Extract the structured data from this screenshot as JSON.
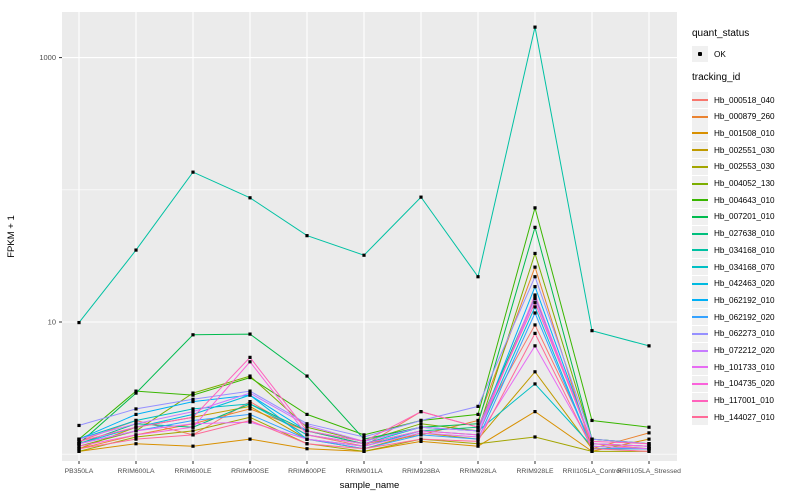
{
  "figure": {
    "y_axis": {
      "label": "FPKM + 1",
      "tick_labels": [
        "1000",
        "10"
      ]
    },
    "x_axis": {
      "label": "sample_name"
    },
    "legend": {
      "quant_status_title": "quant_status",
      "quant_status_items": [
        {
          "label": "OK",
          "marker": "black-point"
        }
      ],
      "tracking_id_title": "tracking_id"
    },
    "colors": {
      "panel_background": "#EBEBEB",
      "gridline": "#FFFFFF",
      "tick_label": "#4D4D4D",
      "point": "#000000",
      "legend_key_background": "#F0F0F0"
    }
  },
  "chart_data": {
    "type": "line",
    "title": "",
    "xlabel": "sample_name",
    "ylabel": "FPKM + 1",
    "y_scale": "log10",
    "y_tick_values": [
      10,
      1000
    ],
    "y_minor_gridlines": [
      1,
      100
    ],
    "ylim": [
      0.88,
      2200
    ],
    "grid": true,
    "legend_position": "right",
    "point_marker": "black-square",
    "categories": [
      "PB350LA",
      "RRIM600LA",
      "RRIM600LE",
      "RRIM600SE",
      "RRIM600PE",
      "RRIM901LA",
      "RRIM928BA",
      "RRIM928LA",
      "RRIM928LE",
      "RRII105LA_Control",
      "RRII105LA_Stressed"
    ],
    "series": [
      {
        "name": "Hb_000518_040",
        "color": "#F8766D",
        "values": [
          1.25,
          1.8,
          1.4,
          2.5,
          1.4,
          1.15,
          2.1,
          1.6,
          9.5,
          1.2,
          1.1
        ]
      },
      {
        "name": "Hb_000879_260",
        "color": "#EA8331",
        "values": [
          1.1,
          1.4,
          1.7,
          2.2,
          1.5,
          1.2,
          1.4,
          1.8,
          26,
          1.1,
          1.45
        ]
      },
      {
        "name": "Hb_001508_010",
        "color": "#D89000",
        "values": [
          1.05,
          1.2,
          1.15,
          1.3,
          1.1,
          1.05,
          1.25,
          1.15,
          2.1,
          1.05,
          1.3
        ]
      },
      {
        "name": "Hb_002551_030",
        "color": "#C09B00",
        "values": [
          1.1,
          1.6,
          1.9,
          2.3,
          1.3,
          1.1,
          1.45,
          1.3,
          4.2,
          1.1,
          1.1
        ]
      },
      {
        "name": "Hb_002553_030",
        "color": "#A3A500",
        "values": [
          1.05,
          1.35,
          1.5,
          1.9,
          1.2,
          1.05,
          1.3,
          1.2,
          1.35,
          1.05,
          1.05
        ]
      },
      {
        "name": "Hb_004052_130",
        "color": "#7CAE00",
        "values": [
          1.15,
          1.5,
          2.9,
          3.9,
          1.6,
          1.25,
          1.7,
          1.5,
          33,
          1.3,
          1.2
        ]
      },
      {
        "name": "Hb_004643_010",
        "color": "#39B600",
        "values": [
          1.3,
          3.0,
          2.8,
          3.8,
          2.0,
          1.4,
          1.8,
          2.0,
          73,
          1.8,
          1.6
        ]
      },
      {
        "name": "Hb_007201_010",
        "color": "#00BB4E",
        "values": [
          1.2,
          2.9,
          8.0,
          8.1,
          3.9,
          1.3,
          1.6,
          1.7,
          52,
          1.3,
          1.2
        ]
      },
      {
        "name": "Hb_027638_010",
        "color": "#00BF7D",
        "values": [
          1.2,
          1.7,
          1.6,
          2.4,
          1.5,
          1.2,
          1.5,
          1.6,
          15.5,
          1.2,
          1.15
        ]
      },
      {
        "name": "Hb_034168_010",
        "color": "#00C1A3",
        "values": [
          9.9,
          35,
          136,
          87,
          45,
          32,
          88,
          22,
          1700,
          8.6,
          6.6
        ]
      },
      {
        "name": "Hb_034168_070",
        "color": "#00BFC4",
        "values": [
          1.3,
          1.8,
          2.2,
          2.4,
          1.4,
          1.2,
          1.6,
          1.5,
          3.4,
          1.15,
          1.1
        ]
      },
      {
        "name": "Hb_042463_020",
        "color": "#00BAE0",
        "values": [
          1.2,
          1.6,
          2.0,
          2.8,
          1.3,
          1.15,
          1.5,
          1.4,
          13,
          1.1,
          1.1
        ]
      },
      {
        "name": "Hb_062192_010",
        "color": "#00B0F6",
        "values": [
          1.3,
          2.0,
          2.5,
          2.8,
          1.5,
          1.25,
          1.6,
          1.5,
          18.5,
          1.2,
          1.15
        ]
      },
      {
        "name": "Hb_062192_020",
        "color": "#35A2FF",
        "values": [
          1.2,
          1.5,
          1.8,
          2.0,
          1.3,
          1.1,
          1.4,
          1.3,
          11.7,
          1.1,
          1.1
        ]
      },
      {
        "name": "Hb_062273_010",
        "color": "#9590FF",
        "values": [
          1.65,
          2.2,
          2.6,
          3.0,
          1.7,
          1.35,
          1.8,
          2.3,
          22,
          1.3,
          1.2
        ]
      },
      {
        "name": "Hb_072212_020",
        "color": "#C77CFF",
        "values": [
          1.3,
          1.7,
          2.1,
          2.9,
          1.65,
          1.25,
          1.6,
          1.5,
          15,
          1.2,
          1.15
        ]
      },
      {
        "name": "Hb_101733_010",
        "color": "#E76BF3",
        "values": [
          1.2,
          1.5,
          1.7,
          1.75,
          1.3,
          1.15,
          1.45,
          1.35,
          6.6,
          1.15,
          1.1
        ]
      },
      {
        "name": "Hb_104735_020",
        "color": "#FA62DB",
        "values": [
          1.15,
          1.4,
          1.6,
          5.0,
          1.4,
          1.2,
          1.5,
          1.4,
          16,
          1.2,
          1.15
        ]
      },
      {
        "name": "Hb_117001_010",
        "color": "#FF62BC",
        "values": [
          1.25,
          1.6,
          1.9,
          5.4,
          1.5,
          1.25,
          2.1,
          1.6,
          14,
          1.25,
          1.2
        ]
      },
      {
        "name": "Hb_144027_010",
        "color": "#FF6A98",
        "values": [
          1.1,
          1.3,
          1.4,
          1.8,
          1.2,
          1.1,
          1.3,
          1.25,
          8.2,
          1.1,
          1.05
        ]
      }
    ]
  }
}
